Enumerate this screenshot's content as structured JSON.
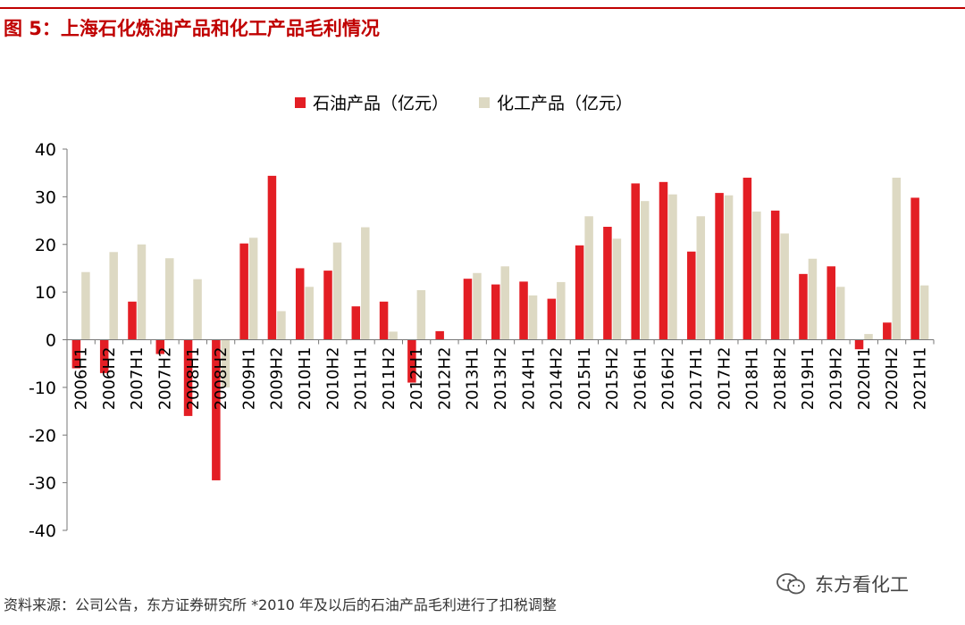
{
  "figure": {
    "title": "图 5：上海石化炼油产品和化工产品毛利情况",
    "source_note": "资料来源：公司公告，东方证券研究所 *2010 年及以后的石油产品毛利进行了扣税调整",
    "watermark": "东方看化工",
    "watermark_icon": "wechat-icon"
  },
  "colors": {
    "accent": "#c00000",
    "series_refining": "#e31e24",
    "series_chemical": "#ddd9c3"
  },
  "chart_data": {
    "type": "bar",
    "categories": [
      "2006H1",
      "2006H2",
      "2007H1",
      "2007H2",
      "2008H1",
      "2008H2",
      "2009H1",
      "2009H2",
      "2010H1",
      "2010H2",
      "2011H1",
      "2011H2",
      "2012H1",
      "2012H2",
      "2013H1",
      "2013H2",
      "2014H1",
      "2014H2",
      "2015H1",
      "2015H2",
      "2016H1",
      "2016H2",
      "2017H1",
      "2017H2",
      "2018H1",
      "2018H2",
      "2019H1",
      "2019H2",
      "2020H1",
      "2020H2",
      "2021H1"
    ],
    "series": [
      {
        "name": "石油产品（亿元）",
        "values": [
          -6,
          -7,
          8,
          -3,
          -16,
          -29.5,
          20.2,
          34.4,
          15,
          14.5,
          7,
          8,
          -9,
          1.8,
          12.8,
          11.6,
          12.2,
          8.6,
          19.8,
          23.7,
          32.8,
          33.1,
          18.5,
          30.8,
          34,
          27.1,
          13.8,
          15.4,
          -2,
          3.6,
          29.8
        ]
      },
      {
        "name": "化工产品（亿元）",
        "values": [
          14.2,
          18.4,
          20,
          17.1,
          12.7,
          -10,
          21.4,
          6,
          11.1,
          20.4,
          23.6,
          1.7,
          10.4,
          0,
          14,
          15.4,
          9.3,
          12.1,
          25.9,
          21.2,
          29.1,
          30.5,
          25.9,
          30.3,
          26.9,
          22.3,
          17,
          11.1,
          1.2,
          34,
          11.4
        ]
      }
    ],
    "ylim": [
      -40,
      40
    ],
    "yticks": [
      -40,
      -30,
      -20,
      -10,
      0,
      10,
      20,
      30,
      40
    ],
    "xlabel": "",
    "ylabel": "",
    "grid": false,
    "legend_position": "top-center"
  }
}
